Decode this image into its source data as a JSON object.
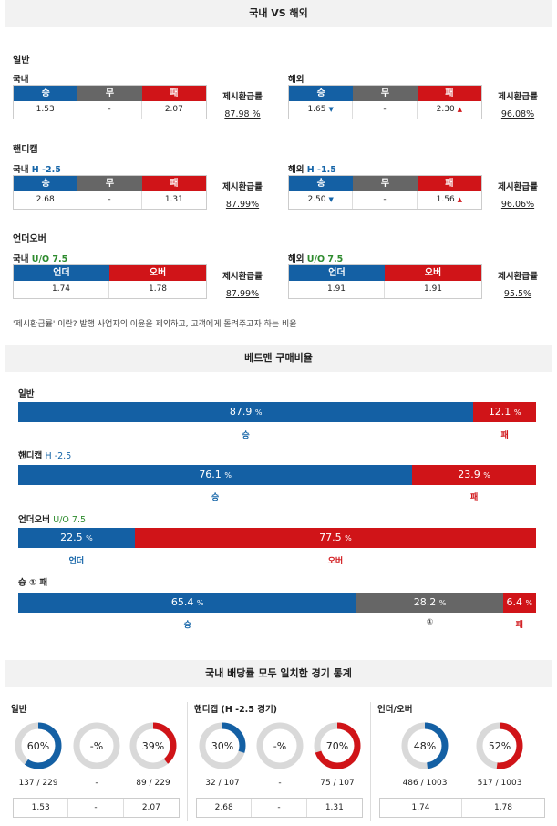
{
  "header": {
    "title": "국내 VS 해외"
  },
  "odds": {
    "general": {
      "title": "일반",
      "domestic": {
        "label": "국내",
        "h_win": "승",
        "h_draw": "무",
        "h_lose": "패",
        "win": "1.53",
        "draw": "-",
        "lose": "2.07",
        "payout_title": "제시환급률",
        "payout": "87.98 %"
      },
      "overseas": {
        "label": "해외",
        "h_win": "승",
        "h_draw": "무",
        "h_lose": "패",
        "win": "1.65",
        "draw": "-",
        "lose": "2.30",
        "payout_title": "제시환급률",
        "payout": "96.08%"
      }
    },
    "handicap": {
      "title": "핸디캡",
      "domestic": {
        "label": "국내",
        "line": "H -2.5",
        "h_win": "승",
        "h_draw": "무",
        "h_lose": "패",
        "win": "2.68",
        "draw": "-",
        "lose": "1.31",
        "payout_title": "제시환급률",
        "payout": "87.99%"
      },
      "overseas": {
        "label": "해외",
        "line": "H -1.5",
        "h_win": "승",
        "h_draw": "무",
        "h_lose": "패",
        "win": "2.50",
        "draw": "-",
        "lose": "1.56",
        "payout_title": "제시환급률",
        "payout": "96.06%"
      }
    },
    "underover": {
      "title": "언더오버",
      "domestic": {
        "label": "국내",
        "line": "U/O 7.5",
        "h_under": "언더",
        "h_over": "오버",
        "under": "1.74",
        "over": "1.78",
        "payout_title": "제시환급률",
        "payout": "87.99%"
      },
      "overseas": {
        "label": "해외",
        "line": "U/O 7.5",
        "h_under": "언더",
        "h_over": "오버",
        "under": "1.91",
        "over": "1.91",
        "payout_title": "제시환급률",
        "payout": "95.5%"
      }
    },
    "note": "'제시환급률' 이란? 발행 사업자의 이윤을 제외하고, 고객에게 돌려주고자 하는 비율"
  },
  "betman": {
    "title": "베트맨 구매비율",
    "general": {
      "title": "일반",
      "left_val": "87.9",
      "right_val": "12.1",
      "pct": "%",
      "left_label": "승",
      "right_label": "패",
      "left_frac": 87.9,
      "right_frac": 12.1
    },
    "handicap": {
      "title": "핸디캡",
      "line": "H -2.5",
      "left_val": "76.1",
      "right_val": "23.9",
      "pct": "%",
      "left_label": "승",
      "right_label": "패",
      "left_frac": 76.1,
      "right_frac": 23.9
    },
    "underover": {
      "title": "언더오버",
      "line": "U/O 7.5",
      "left_val": "22.5",
      "right_val": "77.5",
      "pct": "%",
      "left_label": "언더",
      "right_label": "오버",
      "left_frac": 22.5,
      "right_frac": 77.5
    },
    "winoneloss": {
      "title": "승 ① 패",
      "v1": "65.4",
      "v2": "28.2",
      "v3": "6.4",
      "pct": "%",
      "l1": "승",
      "l2": "①",
      "l3": "패",
      "f1": 65.4,
      "f2": 28.2,
      "f3": 6.4
    }
  },
  "stats": {
    "title": "국내 배당률 모두 일치한 경기 통계",
    "general": {
      "title": "일반",
      "win": {
        "pct": "60%",
        "frac": 0.6,
        "count": "137 / 229",
        "odd": "1.53",
        "color": "#1460a4"
      },
      "draw": {
        "pct": "-%",
        "frac": 0,
        "count": "-",
        "odd": "-",
        "color": "#888"
      },
      "lose": {
        "pct": "39%",
        "frac": 0.39,
        "count": "89 / 229",
        "odd": "2.07",
        "color": "#d01418"
      }
    },
    "handicap": {
      "title": "핸디캡 (H -2.5 경기)",
      "win": {
        "pct": "30%",
        "frac": 0.3,
        "count": "32 / 107",
        "odd": "2.68",
        "color": "#1460a4"
      },
      "draw": {
        "pct": "-%",
        "frac": 0,
        "count": "-",
        "odd": "-",
        "color": "#888"
      },
      "lose": {
        "pct": "70%",
        "frac": 0.7,
        "count": "75 / 107",
        "odd": "1.31",
        "color": "#d01418"
      }
    },
    "underover": {
      "title": "언더/오버",
      "under": {
        "pct": "48%",
        "frac": 0.48,
        "count": "486 / 1003",
        "odd": "1.74",
        "color": "#1460a4"
      },
      "over": {
        "pct": "52%",
        "frac": 0.52,
        "count": "517 / 1003",
        "odd": "1.78",
        "color": "#d01418"
      }
    }
  }
}
